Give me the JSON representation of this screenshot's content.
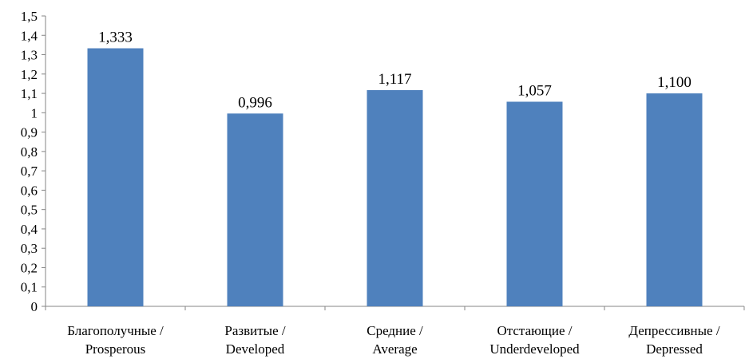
{
  "chart_data": {
    "type": "bar",
    "categories": [
      [
        "Благополучные /",
        "Prosperous"
      ],
      [
        "Развитые /",
        "Developed"
      ],
      [
        "Средние /",
        "Average"
      ],
      [
        "Отстающие /",
        "Underdeveloped"
      ],
      [
        "Депрессивные /",
        "Depressed"
      ]
    ],
    "values": [
      1.333,
      0.996,
      1.117,
      1.057,
      1.1
    ],
    "data_labels": [
      "1,333",
      "0,996",
      "1,117",
      "1,057",
      "1,100"
    ],
    "ylim": [
      0,
      1.5
    ],
    "y_ticks": [
      0,
      0.1,
      0.2,
      0.3,
      0.4,
      0.5,
      0.6,
      0.7,
      0.8,
      0.9,
      1,
      1.1,
      1.2,
      1.3,
      1.4,
      1.5
    ],
    "y_tick_labels": [
      "0",
      "0,1",
      "0,2",
      "0,3",
      "0,4",
      "0,5",
      "0,6",
      "0,7",
      "0,8",
      "0,9",
      "1",
      "1,1",
      "1,2",
      "1,3",
      "1,4",
      "1,5"
    ],
    "title": "",
    "xlabel": "",
    "ylabel": "",
    "grid": false,
    "legend": "none",
    "colors": {
      "bar": "#4F81BD",
      "axis": "#868686"
    }
  }
}
